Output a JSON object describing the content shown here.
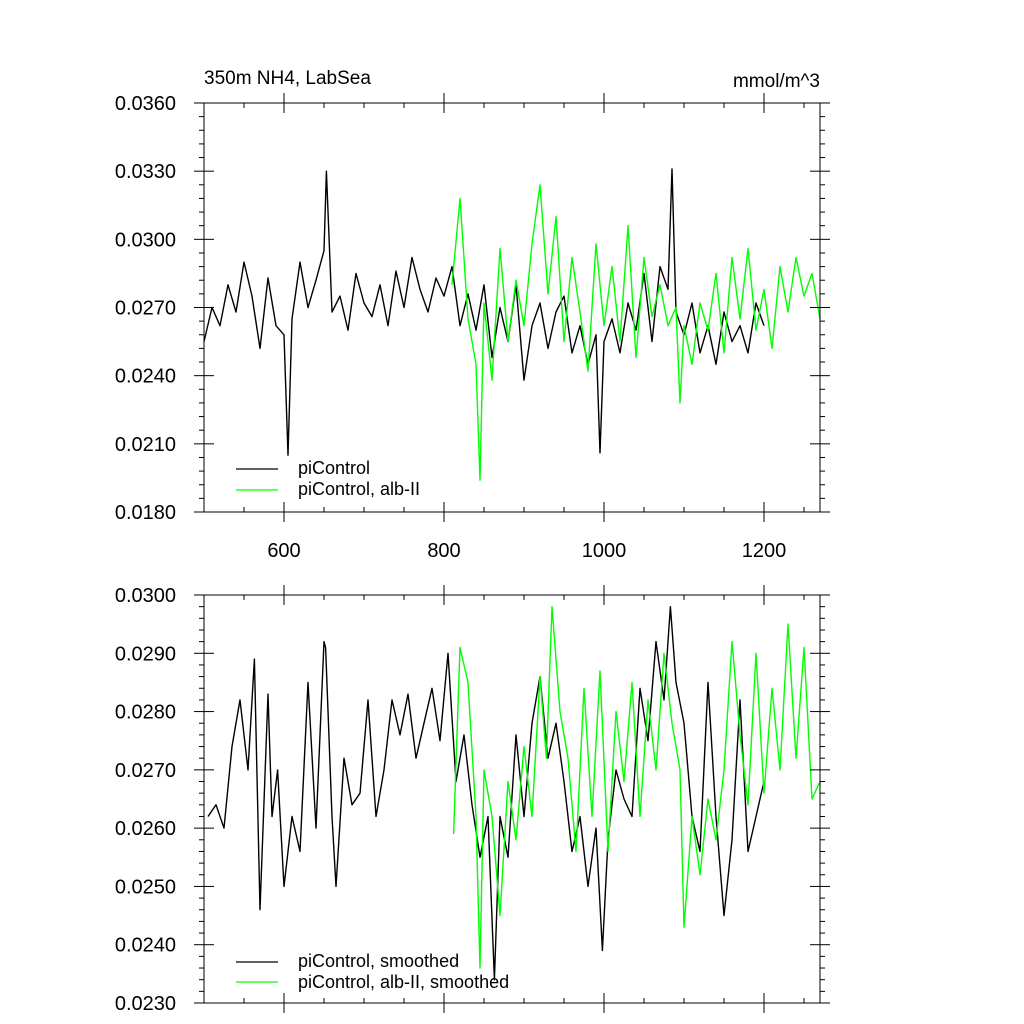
{
  "chart_data": [
    {
      "type": "line",
      "title_left": "350m NH4, LabSea",
      "title_right": "mmol/m^3",
      "xlabel": "",
      "ylabel": "",
      "xlim": [
        500,
        1270
      ],
      "ylim": [
        0.018,
        0.036
      ],
      "x_ticks": [
        600,
        800,
        1000,
        1200
      ],
      "x_tick_labels": [
        "600",
        "800",
        "1000",
        "1200"
      ],
      "y_ticks": [
        0.018,
        0.021,
        0.024,
        0.027,
        0.03,
        0.033,
        0.036
      ],
      "y_tick_labels": [
        "0.0180",
        "0.0210",
        "0.0240",
        "0.0270",
        "0.0300",
        "0.0330",
        "0.0360"
      ],
      "grid": false,
      "legend_position": "bottom-left",
      "series": [
        {
          "name": "piControl",
          "color": "#000000",
          "x": [
            500,
            510,
            520,
            530,
            540,
            550,
            560,
            570,
            580,
            590,
            600,
            605,
            610,
            620,
            630,
            640,
            650,
            653,
            660,
            670,
            680,
            690,
            700,
            710,
            720,
            730,
            740,
            750,
            760,
            770,
            780,
            790,
            800,
            810,
            820,
            830,
            840,
            850,
            860,
            870,
            880,
            890,
            900,
            910,
            920,
            930,
            940,
            950,
            960,
            970,
            980,
            990,
            995,
            1000,
            1010,
            1020,
            1030,
            1040,
            1050,
            1060,
            1070,
            1080,
            1085,
            1090,
            1100,
            1110,
            1120,
            1130,
            1140,
            1150,
            1160,
            1170,
            1180,
            1190,
            1200
          ],
          "y": [
            0.0255,
            0.027,
            0.0262,
            0.028,
            0.0268,
            0.029,
            0.0275,
            0.0252,
            0.0283,
            0.0262,
            0.0258,
            0.0205,
            0.0265,
            0.029,
            0.027,
            0.0282,
            0.0295,
            0.033,
            0.0268,
            0.0275,
            0.026,
            0.0285,
            0.0272,
            0.0266,
            0.028,
            0.0262,
            0.0286,
            0.027,
            0.0292,
            0.0278,
            0.0268,
            0.0283,
            0.0275,
            0.0288,
            0.0262,
            0.0276,
            0.026,
            0.028,
            0.0248,
            0.027,
            0.0255,
            0.028,
            0.0238,
            0.0262,
            0.0272,
            0.0252,
            0.0268,
            0.0275,
            0.025,
            0.0262,
            0.0245,
            0.0258,
            0.0206,
            0.0255,
            0.0265,
            0.025,
            0.0272,
            0.026,
            0.0285,
            0.0255,
            0.0288,
            0.0278,
            0.0331,
            0.0268,
            0.0258,
            0.0272,
            0.025,
            0.0262,
            0.0245,
            0.0268,
            0.0255,
            0.0262,
            0.025,
            0.0272,
            0.0262
          ]
        },
        {
          "name": "piControl, alb-II",
          "color": "#00ff00",
          "x": [
            810,
            820,
            830,
            840,
            845,
            850,
            860,
            870,
            880,
            890,
            900,
            910,
            920,
            930,
            940,
            950,
            960,
            970,
            980,
            990,
            1000,
            1010,
            1020,
            1030,
            1040,
            1050,
            1060,
            1070,
            1080,
            1090,
            1095,
            1100,
            1110,
            1120,
            1130,
            1140,
            1150,
            1160,
            1170,
            1180,
            1190,
            1200,
            1210,
            1220,
            1230,
            1240,
            1250,
            1260,
            1270
          ],
          "y": [
            0.028,
            0.0318,
            0.0265,
            0.0245,
            0.0194,
            0.0272,
            0.0238,
            0.0296,
            0.0255,
            0.0282,
            0.0262,
            0.0298,
            0.0324,
            0.0276,
            0.031,
            0.0255,
            0.0292,
            0.0268,
            0.0242,
            0.0298,
            0.0262,
            0.0288,
            0.0255,
            0.0306,
            0.0248,
            0.0292,
            0.0266,
            0.028,
            0.0262,
            0.027,
            0.0228,
            0.0262,
            0.0245,
            0.0272,
            0.026,
            0.0285,
            0.025,
            0.0292,
            0.0265,
            0.0296,
            0.026,
            0.0278,
            0.0252,
            0.0288,
            0.0268,
            0.0292,
            0.0275,
            0.0285,
            0.0265
          ]
        }
      ]
    },
    {
      "type": "line",
      "xlabel": "",
      "ylabel": "",
      "xlim": [
        500,
        1270
      ],
      "ylim": [
        0.023,
        0.03
      ],
      "x_ticks": [
        600,
        800,
        1000,
        1200
      ],
      "y_ticks": [
        0.023,
        0.024,
        0.025,
        0.026,
        0.027,
        0.028,
        0.029,
        0.03
      ],
      "y_tick_labels": [
        "0.0230",
        "0.0240",
        "0.0250",
        "0.0260",
        "0.0270",
        "0.0280",
        "0.0290",
        "0.0300"
      ],
      "grid": false,
      "legend_position": "bottom-left",
      "series": [
        {
          "name": "piControl, smoothed",
          "color": "#000000",
          "x": [
            505,
            515,
            525,
            535,
            545,
            555,
            563,
            570,
            580,
            585,
            592,
            600,
            610,
            620,
            630,
            640,
            650,
            652,
            660,
            665,
            675,
            685,
            695,
            705,
            715,
            725,
            735,
            745,
            755,
            765,
            775,
            785,
            795,
            805,
            815,
            825,
            835,
            845,
            855,
            863,
            870,
            880,
            890,
            900,
            910,
            920,
            930,
            940,
            950,
            960,
            970,
            980,
            990,
            998,
            1005,
            1015,
            1025,
            1035,
            1045,
            1055,
            1065,
            1075,
            1083,
            1090,
            1100,
            1110,
            1120,
            1130,
            1140,
            1150,
            1160,
            1170,
            1180,
            1190,
            1200
          ],
          "y": [
            0.0262,
            0.0264,
            0.026,
            0.0274,
            0.0282,
            0.027,
            0.0289,
            0.0246,
            0.0283,
            0.0262,
            0.027,
            0.025,
            0.0262,
            0.0256,
            0.0285,
            0.026,
            0.0292,
            0.0291,
            0.0262,
            0.025,
            0.0272,
            0.0264,
            0.0266,
            0.0282,
            0.0262,
            0.027,
            0.0282,
            0.0276,
            0.0283,
            0.0272,
            0.0278,
            0.0284,
            0.0275,
            0.029,
            0.0268,
            0.0276,
            0.0264,
            0.0255,
            0.0262,
            0.0234,
            0.0262,
            0.0255,
            0.0276,
            0.0262,
            0.0278,
            0.0286,
            0.0272,
            0.0278,
            0.0268,
            0.0256,
            0.0262,
            0.025,
            0.026,
            0.0239,
            0.0258,
            0.027,
            0.0265,
            0.0262,
            0.0284,
            0.0275,
            0.0292,
            0.0282,
            0.0298,
            0.0285,
            0.0278,
            0.0262,
            0.0256,
            0.0285,
            0.0262,
            0.0245,
            0.0258,
            0.0282,
            0.0256,
            0.0262,
            0.0268
          ]
        },
        {
          "name": "piControl, alb-II, smoothed",
          "color": "#00ff00",
          "x": [
            812,
            820,
            830,
            840,
            845,
            850,
            860,
            870,
            880,
            890,
            900,
            910,
            920,
            928,
            935,
            945,
            955,
            965,
            975,
            985,
            995,
            1005,
            1015,
            1025,
            1035,
            1045,
            1055,
            1065,
            1075,
            1085,
            1095,
            1100,
            1110,
            1120,
            1130,
            1140,
            1150,
            1160,
            1170,
            1180,
            1190,
            1200,
            1210,
            1220,
            1230,
            1240,
            1250,
            1260,
            1270
          ],
          "y": [
            0.0259,
            0.0291,
            0.0285,
            0.0262,
            0.0236,
            0.027,
            0.0262,
            0.0245,
            0.0268,
            0.0258,
            0.0274,
            0.0262,
            0.0286,
            0.0272,
            0.0298,
            0.028,
            0.0272,
            0.0256,
            0.0284,
            0.0262,
            0.0287,
            0.0256,
            0.028,
            0.0268,
            0.0285,
            0.0262,
            0.0282,
            0.027,
            0.029,
            0.0278,
            0.027,
            0.0243,
            0.0262,
            0.0252,
            0.0265,
            0.0258,
            0.027,
            0.0292,
            0.0276,
            0.0264,
            0.029,
            0.0266,
            0.0284,
            0.027,
            0.0295,
            0.0272,
            0.0291,
            0.0265,
            0.0268
          ]
        }
      ]
    }
  ]
}
